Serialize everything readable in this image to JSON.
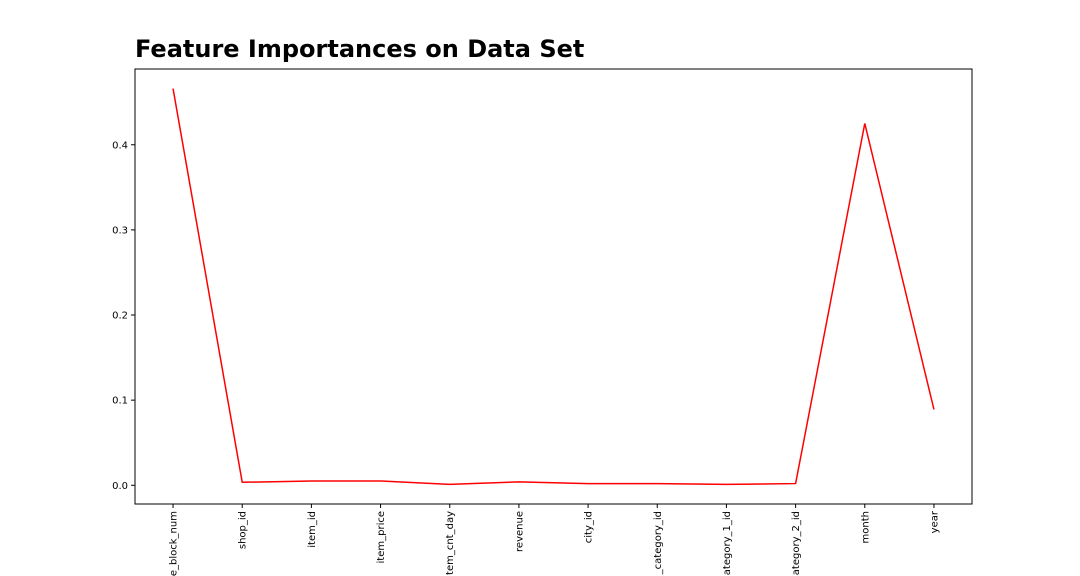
{
  "chart_data": {
    "type": "line",
    "title": "Feature Importances on Data Set",
    "categories": [
      "e_block_num",
      "shop_id",
      "item_id",
      "item_price",
      "tem_cnt_day",
      "revenue",
      "city_id",
      "_category_id",
      "ategory_1_id",
      "ategory_2_id",
      "month",
      "year"
    ],
    "values": [
      0.466,
      0.0035,
      0.005,
      0.005,
      0.001,
      0.004,
      0.002,
      0.002,
      0.001,
      0.002,
      0.425,
      0.089
    ],
    "color": "#ff0000",
    "ylim": [
      -0.022,
      0.489
    ],
    "yticks": [
      {
        "value": 0,
        "label": "0.0"
      },
      0.1,
      0.2,
      0.3,
      0.4
    ]
  }
}
